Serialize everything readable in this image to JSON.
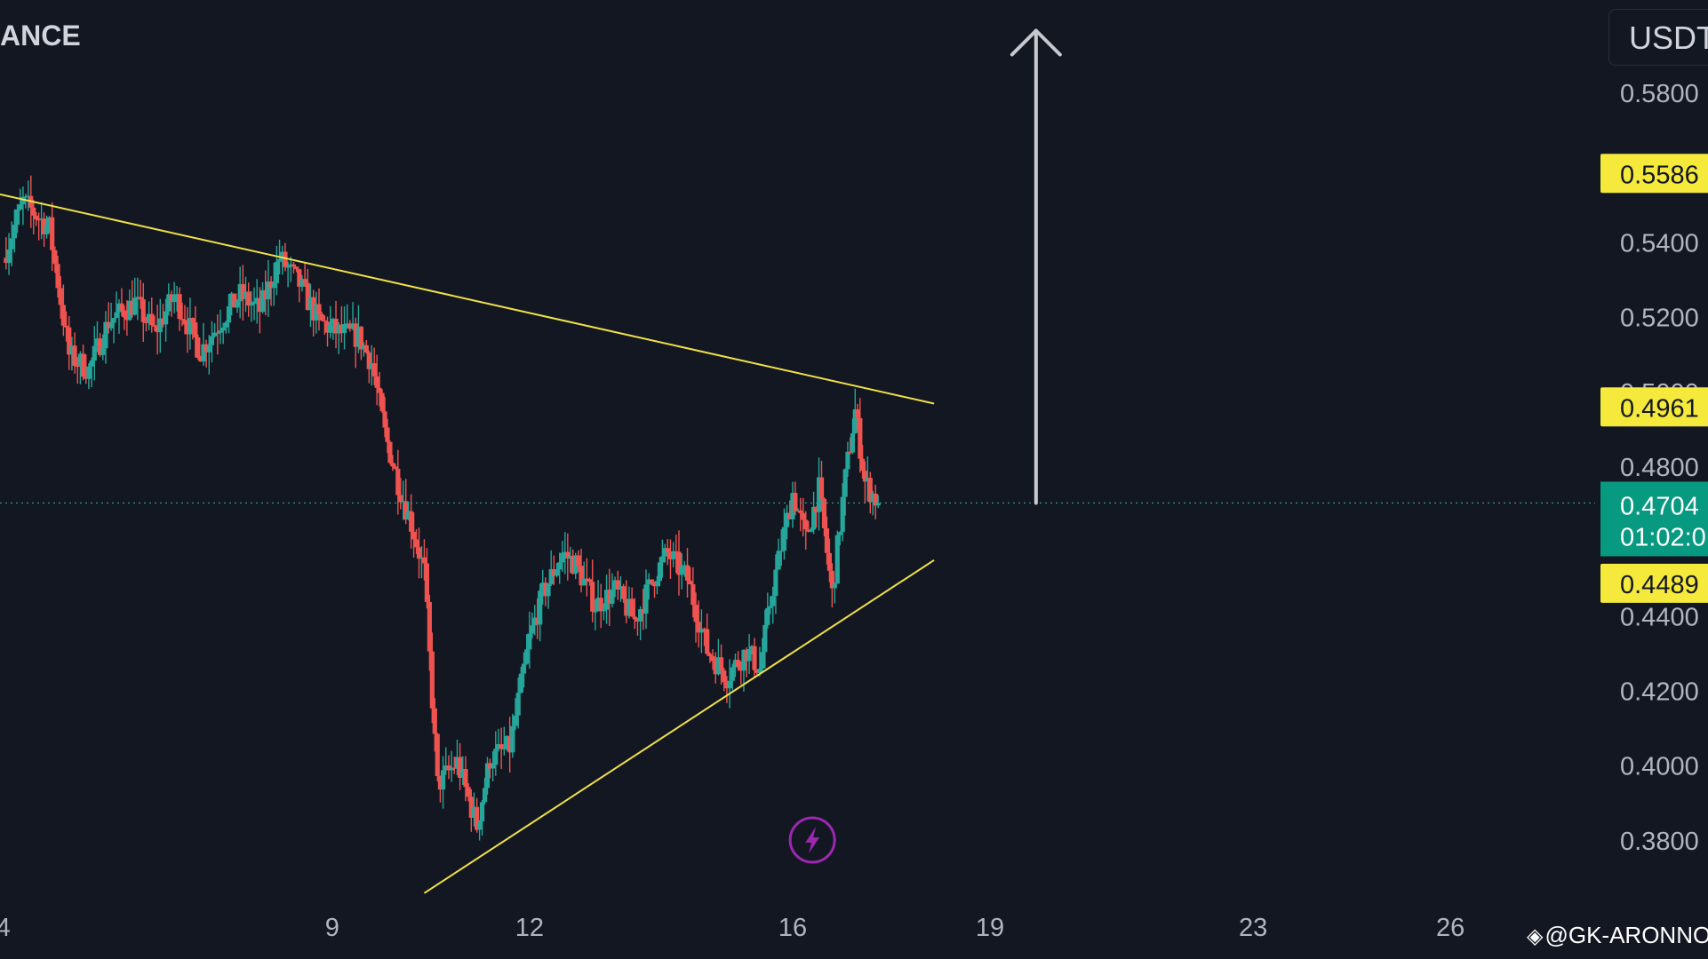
{
  "header": {
    "exchange": "ANCE",
    "currency": "USDT"
  },
  "watermark": {
    "icon": "binance-diamond-icon",
    "text": "@GK-ARONNO"
  },
  "colors": {
    "background": "#131722",
    "bull": "#26a69a",
    "bear": "#ef5350",
    "trendline": "#f0e14a",
    "level_badge": "#f5ea3c",
    "current_price_badge": "#089981",
    "arrow": "#c7c9cf",
    "flash_icon": "#9c27b0"
  },
  "chart_data": {
    "type": "candlestick",
    "y_axis": {
      "ticks": [
        0.58,
        0.54,
        0.52,
        0.5,
        0.48,
        0.44,
        0.42,
        0.4,
        0.38
      ],
      "tick_labels": [
        "0.5800",
        "0.5400",
        "0.5200",
        "0.5000",
        "0.4800",
        "0.4400",
        "0.4200",
        "0.4000",
        "0.3800"
      ],
      "range": [
        0.365,
        0.605
      ]
    },
    "x_axis": {
      "ticks": [
        4,
        9,
        12,
        16,
        19,
        23,
        26
      ],
      "tick_labels": [
        "4",
        "9",
        "12",
        "16",
        "19",
        "23",
        "26"
      ],
      "range": [
        3.95,
        28.2
      ]
    },
    "price_levels": [
      {
        "value": 0.5586,
        "label": "0.5586"
      },
      {
        "value": 0.4961,
        "label": "0.4961"
      },
      {
        "value": 0.4489,
        "label": "0.4489"
      }
    ],
    "current_price": {
      "value": 0.4704,
      "label": "0.4704",
      "countdown": "01:02:0"
    },
    "trendlines": [
      {
        "name": "upper",
        "from": {
          "x": 3.95,
          "y": 0.553
        },
        "to": {
          "x": 18.15,
          "y": 0.497
        }
      },
      {
        "name": "lower",
        "from": {
          "x": 10.4,
          "y": 0.366
        },
        "to": {
          "x": 18.15,
          "y": 0.4551
        }
      }
    ],
    "arrow": {
      "x": 19.7,
      "from_y": 0.4704,
      "to_y": 0.5968
    },
    "path": [
      [
        4.0,
        0.536
      ],
      [
        4.3,
        0.551
      ],
      [
        4.7,
        0.544
      ],
      [
        5.0,
        0.51
      ],
      [
        5.3,
        0.506
      ],
      [
        5.6,
        0.519
      ],
      [
        6.0,
        0.524
      ],
      [
        6.3,
        0.516
      ],
      [
        6.6,
        0.526
      ],
      [
        7.0,
        0.511
      ],
      [
        7.3,
        0.519
      ],
      [
        7.6,
        0.526
      ],
      [
        7.9,
        0.522
      ],
      [
        8.2,
        0.536
      ],
      [
        8.5,
        0.529
      ],
      [
        8.8,
        0.519
      ],
      [
        9.1,
        0.516
      ],
      [
        9.4,
        0.515
      ],
      [
        9.6,
        0.508
      ],
      [
        9.8,
        0.489
      ],
      [
        10.0,
        0.476
      ],
      [
        10.2,
        0.465
      ],
      [
        10.4,
        0.452
      ],
      [
        10.6,
        0.395
      ],
      [
        10.9,
        0.401
      ],
      [
        11.2,
        0.384
      ],
      [
        11.4,
        0.402
      ],
      [
        11.7,
        0.405
      ],
      [
        12.0,
        0.434
      ],
      [
        12.2,
        0.446
      ],
      [
        12.5,
        0.457
      ],
      [
        12.7,
        0.454
      ],
      [
        13.0,
        0.443
      ],
      [
        13.3,
        0.447
      ],
      [
        13.6,
        0.439
      ],
      [
        13.9,
        0.451
      ],
      [
        14.1,
        0.457
      ],
      [
        14.4,
        0.45
      ],
      [
        14.7,
        0.431
      ],
      [
        15.0,
        0.424
      ],
      [
        15.3,
        0.431
      ],
      [
        15.5,
        0.426
      ],
      [
        15.7,
        0.448
      ],
      [
        16.0,
        0.473
      ],
      [
        16.2,
        0.461
      ],
      [
        16.4,
        0.474
      ],
      [
        16.6,
        0.446
      ],
      [
        16.8,
        0.477
      ],
      [
        16.95,
        0.495
      ],
      [
        17.1,
        0.476
      ],
      [
        17.3,
        0.4704
      ]
    ]
  }
}
